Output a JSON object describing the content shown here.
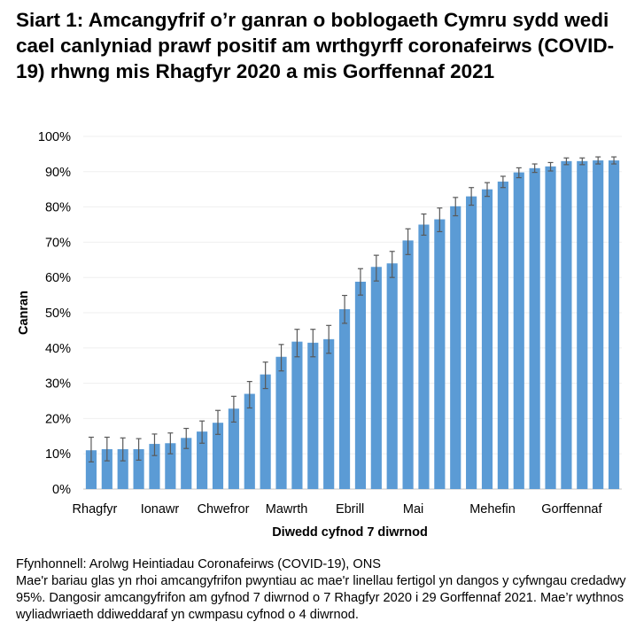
{
  "title": "Siart 1: Amcangyfrif o’r ganran o boblogaeth Cymru sydd wedi cael canlyniad prawf positif am wrthgyrff coronafeirws (COVID-19) rhwng mis Rhagfyr 2020 a mis Gorffennaf 2021",
  "notes": {
    "source": "Ffynhonnell: Arolwg Heintiadau Coronafeirws (COVID-19), ONS",
    "text": "Mae'r bariau glas yn rhoi amcangyfrifon pwyntiau ac mae'r linellau fertigol yn dangos y cyfwngau credadwy 95%. Dangosir amcangyfrifon am gyfnod 7 diwrnod o 7 Rhagfyr 2020 i 29 Gorffennaf 2021. Mae’r wythnos wyliadwriaeth ddiweddaraf yn cwmpasu cyfnod o 4 diwrnod."
  },
  "chart_data": {
    "type": "bar",
    "xlabel": "Diwedd cyfnod 7 diwrnod",
    "ylabel": "Canran",
    "ylim": [
      0,
      100
    ],
    "yticks": [
      "0%",
      "10%",
      "20%",
      "30%",
      "40%",
      "50%",
      "60%",
      "70%",
      "80%",
      "90%",
      "100%"
    ],
    "grid": true,
    "bar_color": "#5B9BD5",
    "errorbar_color": "#595959",
    "month_labels": [
      {
        "label": "Rhagfyr",
        "bar": 0
      },
      {
        "label": "Ionawr",
        "bar": 4
      },
      {
        "label": "Chwefror",
        "bar": 8
      },
      {
        "label": "Mawrth",
        "bar": 12
      },
      {
        "label": "Ebrill",
        "bar": 16
      },
      {
        "label": "Mai",
        "bar": 20
      },
      {
        "label": "Mehefin",
        "bar": 25
      },
      {
        "label": "Gorffennaf",
        "bar": 30
      }
    ],
    "values": [
      11.0,
      11.3,
      11.3,
      11.3,
      12.8,
      13.0,
      14.5,
      16.3,
      18.8,
      22.8,
      27.0,
      32.5,
      37.5,
      41.8,
      41.5,
      42.5,
      51.0,
      58.8,
      63.0,
      64.0,
      70.5,
      75.0,
      76.5,
      80.2,
      83.0,
      85.0,
      87.2,
      89.8,
      91.0,
      91.5,
      93.0,
      93.0,
      93.2,
      93.2
    ],
    "lower": [
      7.7,
      8.0,
      8.0,
      8.2,
      9.5,
      10.0,
      11.5,
      13.0,
      15.5,
      19.0,
      23.0,
      28.5,
      33.5,
      37.5,
      37.5,
      38.5,
      47.0,
      55.0,
      59.0,
      60.0,
      66.5,
      72.0,
      73.0,
      77.5,
      80.5,
      83.0,
      85.5,
      88.3,
      89.8,
      90.2,
      92.0,
      92.0,
      92.2,
      92.2
    ],
    "upper": [
      14.7,
      14.7,
      14.5,
      14.3,
      15.6,
      15.9,
      17.2,
      19.3,
      22.3,
      26.3,
      30.5,
      36.0,
      41.0,
      45.3,
      45.3,
      46.4,
      54.9,
      62.5,
      66.3,
      67.4,
      73.8,
      78.0,
      79.7,
      82.7,
      85.5,
      86.9,
      88.7,
      91.1,
      92.2,
      92.6,
      93.9,
      93.9,
      94.2,
      94.2
    ]
  }
}
